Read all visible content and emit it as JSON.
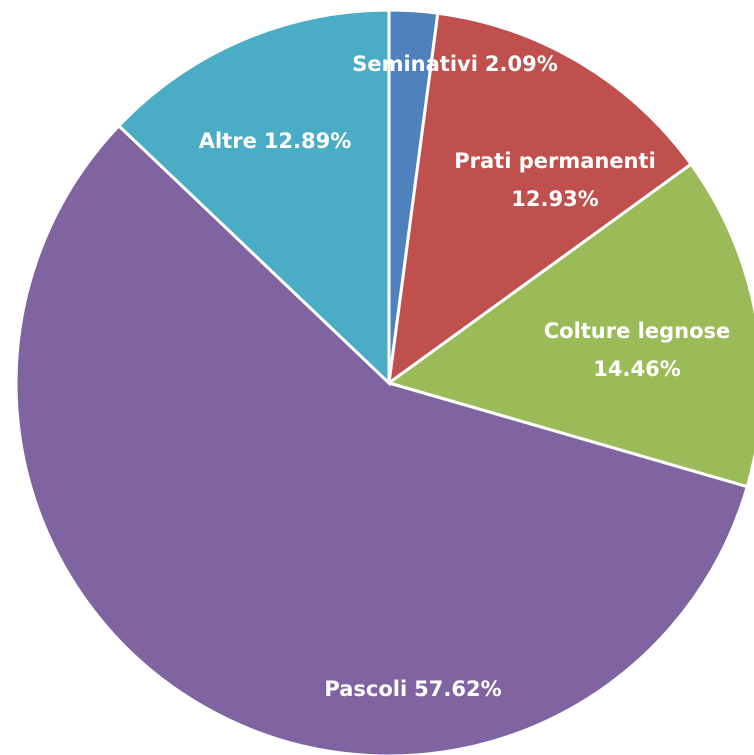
{
  "chart_data": {
    "type": "pie",
    "categories": [
      "Seminativi",
      "Prati permanenti",
      "Colture legnose",
      "Pascoli",
      "Altre"
    ],
    "values": [
      2.09,
      12.93,
      14.46,
      57.62,
      12.89
    ],
    "value_labels": [
      "2.09%",
      "12.93%",
      "14.46%",
      "57.62%",
      "12.89%"
    ],
    "colors": [
      "#4f81bd",
      "#c0504d",
      "#9bbb59",
      "#8064a2",
      "#4bacc6"
    ]
  }
}
